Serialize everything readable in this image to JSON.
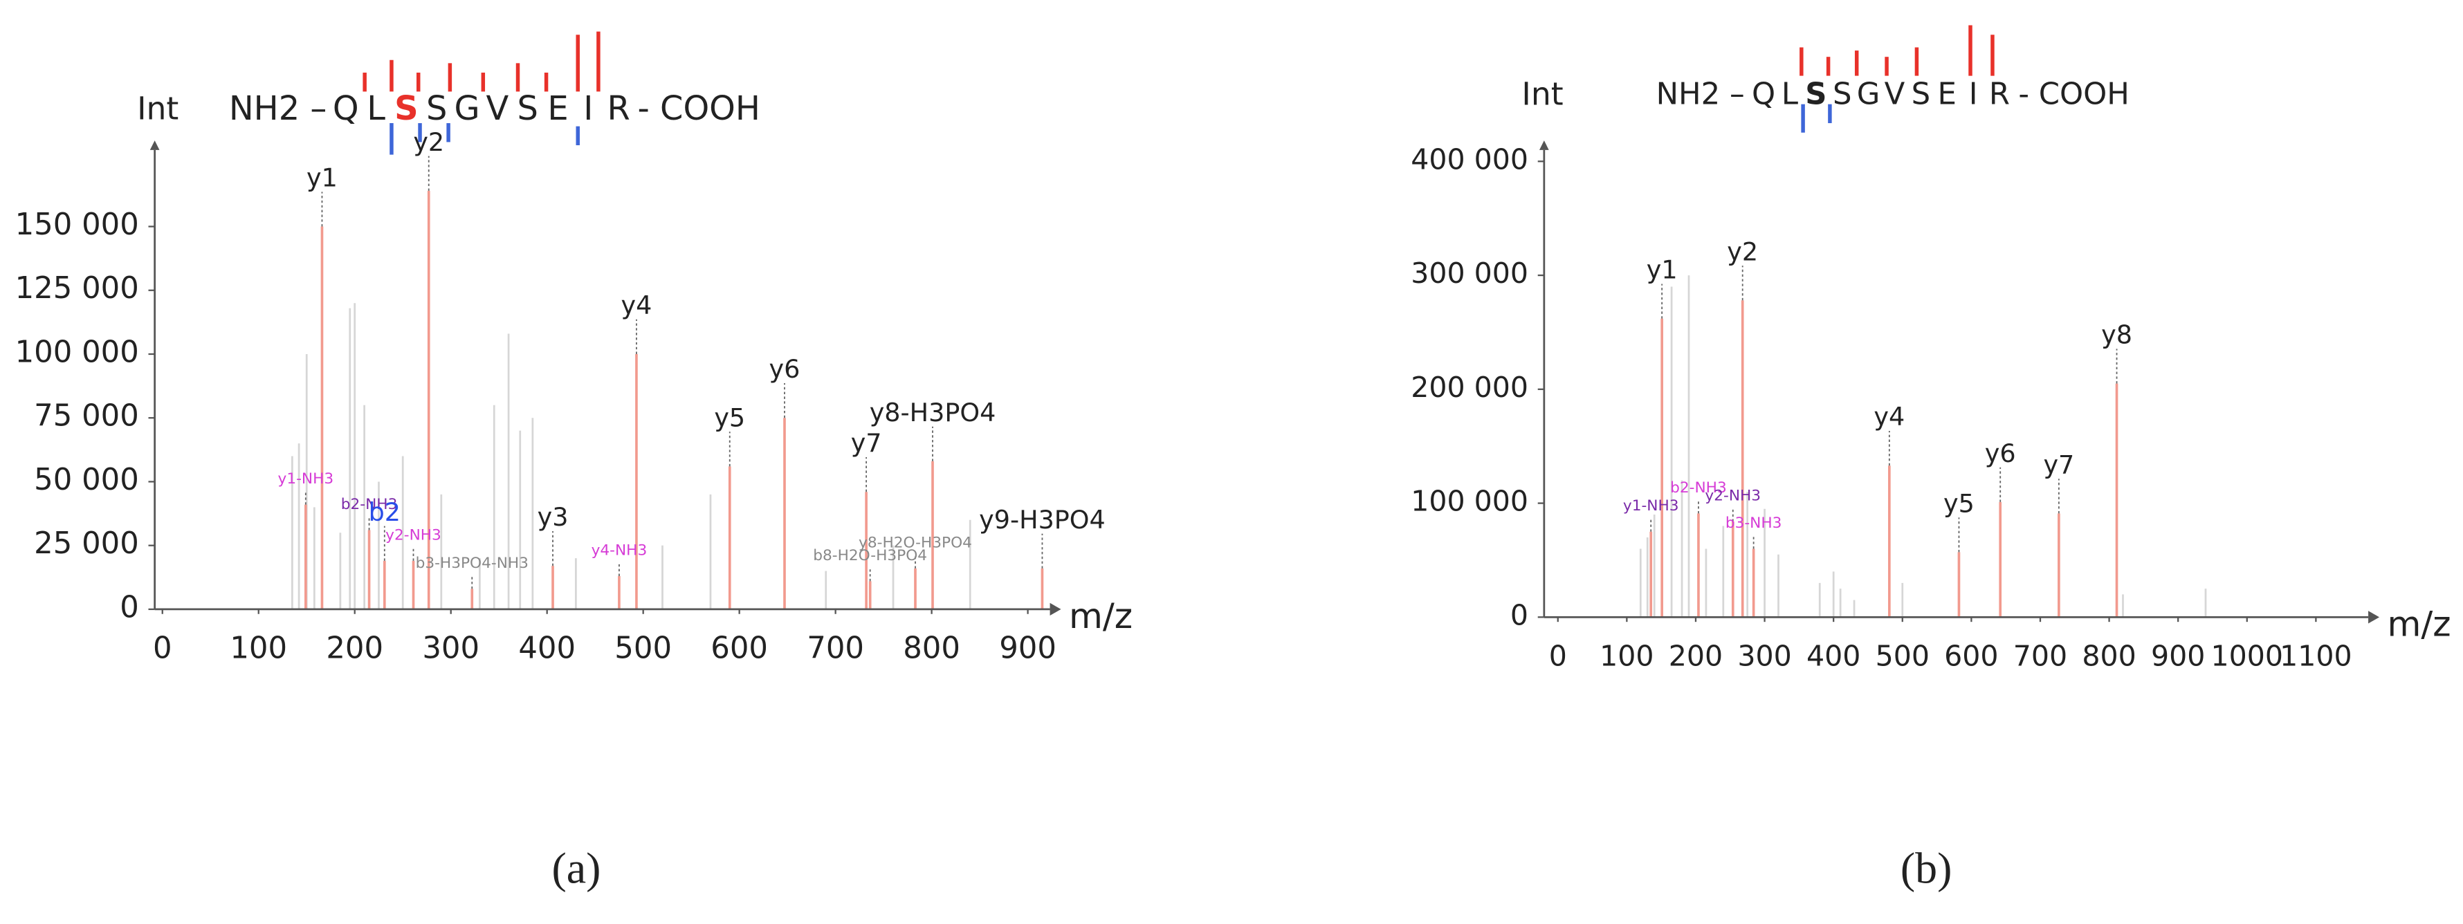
{
  "chart_data": [
    {
      "type": "spectrum",
      "panel_label": "(a)",
      "ylabel": "Int",
      "xlabel": "m/z",
      "sequence": {
        "prefix": "NH2 –",
        "residues": [
          "Q",
          "L",
          "S",
          "S",
          "G",
          "V",
          "S",
          "E",
          "I",
          "R"
        ],
        "suffix": "- COOH",
        "highlight": 2,
        "highlight_color": "#e8312a"
      },
      "xlim": [
        -8,
        923
      ],
      "xticks": [
        0,
        100,
        200,
        300,
        400,
        500,
        600,
        700,
        800,
        900
      ],
      "ylim": [
        0,
        180000
      ],
      "yticks": [
        0,
        {
          "value": 25000,
          "label": "25 000"
        },
        {
          "value": 50000,
          "label": "50 000"
        },
        {
          "value": 75000,
          "label": "75 000"
        },
        {
          "value": 100000,
          "label": "100 000"
        },
        {
          "value": 125000,
          "label": "125 000"
        },
        {
          "value": 150000,
          "label": "150 000"
        }
      ],
      "color": "#f29a8e",
      "x": [
        166,
        277,
        493,
        647,
        590,
        732,
        801,
        915,
        406,
        149,
        215,
        261,
        231,
        322,
        475,
        783,
        736
      ],
      "values": [
        150000,
        164000,
        100000,
        75000,
        56000,
        46000,
        58000,
        16000,
        17000,
        41000,
        31000,
        19000,
        19000,
        8000,
        13000,
        16000,
        11000
      ],
      "labels": [
        "y1",
        "y2",
        "y4",
        "y6",
        "y5",
        "y7",
        "y8-H3PO4",
        "y9-H3PO4",
        "y3",
        "y1-NH3",
        "b2-NH3",
        "y2-NH3",
        "b2",
        "b3-H3PO4-NH3",
        "y4-NH3",
        "y8-H2O-H3PO4",
        "b8-H2O-H3PO4"
      ],
      "label_colors": [
        "#222222",
        "#222222",
        "#222222",
        "#222222",
        "#222222",
        "#222222",
        "#222222",
        "#222222",
        "#222222",
        "#d63bd6",
        "#7a2aa8",
        "#d63bd6",
        "#2a4ee8",
        "#888888",
        "#d63bd6",
        "#888888",
        "#888888"
      ],
      "background_color": "#d6d6d6",
      "background_x": [
        135,
        142,
        150,
        158,
        185,
        195,
        200,
        210,
        225,
        250,
        290,
        330,
        345,
        360,
        372,
        385,
        430,
        520,
        570,
        690,
        760,
        840
      ],
      "background_values": [
        60000,
        65000,
        100000,
        40000,
        30000,
        118000,
        120000,
        80000,
        50000,
        60000,
        45000,
        20000,
        80000,
        108000,
        70000,
        75000,
        20000,
        25000,
        45000,
        15000,
        25000,
        35000
      ]
    },
    {
      "type": "spectrum",
      "panel_label": "(b)",
      "ylabel": "Int",
      "xlabel": "m/z",
      "sequence": {
        "prefix": "NH2 –",
        "residues": [
          "Q",
          "L",
          "S",
          "S",
          "G",
          "V",
          "S",
          "E",
          "I",
          "R"
        ],
        "suffix": "- COOH",
        "highlight": 2,
        "highlight_color": "#222222"
      },
      "xlim": [
        -20,
        1176
      ],
      "xticks": [
        0,
        100,
        200,
        300,
        400,
        500,
        600,
        700,
        800,
        900,
        1000,
        1100
      ],
      "ylim": [
        0,
        410000
      ],
      "yticks": [
        0,
        {
          "value": 100000,
          "label": "100 000"
        },
        {
          "value": 200000,
          "label": "200 000"
        },
        {
          "value": 300000,
          "label": "300 000"
        },
        {
          "value": 400000,
          "label": "400 000"
        }
      ],
      "color": "#f29a8e",
      "x": [
        151,
        268,
        481,
        582,
        642,
        727,
        811,
        135,
        204,
        254,
        284
      ],
      "values": [
        262000,
        278000,
        133000,
        57000,
        101000,
        91000,
        205000,
        75000,
        91000,
        84000,
        60000
      ],
      "labels": [
        "y1",
        "y2",
        "y4",
        "y5",
        "y6",
        "y7",
        "y8",
        "y1-NH3",
        "b2-NH3",
        "y2-NH3",
        "b3-NH3"
      ],
      "label_colors": [
        "#222222",
        "#222222",
        "#222222",
        "#222222",
        "#222222",
        "#222222",
        "#222222",
        "#7a2aa8",
        "#d63bd6",
        "#7a2aa8",
        "#d63bd6"
      ],
      "background_color": "#d6d6d6",
      "background_x": [
        120,
        130,
        140,
        165,
        180,
        190,
        215,
        240,
        275,
        300,
        320,
        380,
        400,
        410,
        430,
        500,
        820,
        940
      ],
      "background_values": [
        60000,
        70000,
        90000,
        290000,
        120000,
        300000,
        60000,
        80000,
        110000,
        95000,
        55000,
        30000,
        40000,
        25000,
        15000,
        30000,
        20000,
        25000
      ]
    }
  ]
}
